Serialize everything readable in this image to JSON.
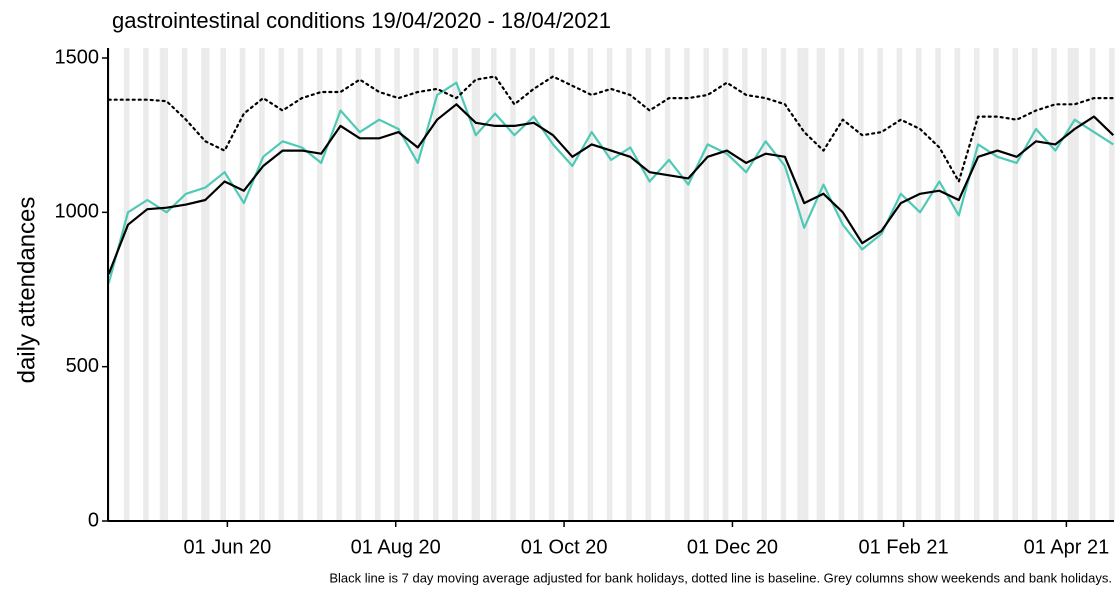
{
  "chart_data": {
    "type": "line",
    "title": "gastrointestinal conditions 19/04/2020 - 18/04/2021",
    "y_label": "daily attendances",
    "caption": "Black line is 7 day moving average adjusted for bank holidays, dotted line is baseline. Grey columns show weekends and bank holidays.",
    "x": [
      "2020-04-19",
      "2020-04-26",
      "2020-05-03",
      "2020-05-10",
      "2020-05-17",
      "2020-05-24",
      "2020-05-31",
      "2020-06-07",
      "2020-06-14",
      "2020-06-21",
      "2020-06-28",
      "2020-07-05",
      "2020-07-12",
      "2020-07-19",
      "2020-07-26",
      "2020-08-02",
      "2020-08-09",
      "2020-08-16",
      "2020-08-23",
      "2020-08-30",
      "2020-09-06",
      "2020-09-13",
      "2020-09-20",
      "2020-09-27",
      "2020-10-04",
      "2020-10-11",
      "2020-10-18",
      "2020-10-25",
      "2020-11-01",
      "2020-11-08",
      "2020-11-15",
      "2020-11-22",
      "2020-11-29",
      "2020-12-06",
      "2020-12-13",
      "2020-12-20",
      "2020-12-27",
      "2021-01-03",
      "2021-01-10",
      "2021-01-17",
      "2021-01-24",
      "2021-01-31",
      "2021-02-07",
      "2021-02-14",
      "2021-02-21",
      "2021-02-28",
      "2021-03-07",
      "2021-03-14",
      "2021-03-21",
      "2021-03-28",
      "2021-04-04",
      "2021-04-11",
      "2021-04-18"
    ],
    "series": [
      {
        "color": "#4fc9b5",
        "style": "solid",
        "width": 2.2,
        "values": [
          770,
          1000,
          1040,
          1000,
          1060,
          1080,
          1130,
          1030,
          1180,
          1230,
          1210,
          1160,
          1330,
          1260,
          1300,
          1270,
          1160,
          1380,
          1420,
          1250,
          1320,
          1250,
          1310,
          1220,
          1150,
          1260,
          1170,
          1210,
          1100,
          1170,
          1090,
          1220,
          1190,
          1130,
          1230,
          1150,
          950,
          1090,
          960,
          880,
          930,
          1060,
          1000,
          1100,
          990,
          1220,
          1180,
          1160,
          1270,
          1200,
          1300,
          1260,
          1220
        ]
      },
      {
        "color": "#000000",
        "style": "dotted",
        "width": 2.2,
        "values": [
          1365,
          1365,
          1365,
          1360,
          1300,
          1230,
          1200,
          1320,
          1370,
          1330,
          1370,
          1390,
          1390,
          1430,
          1390,
          1370,
          1390,
          1400,
          1370,
          1430,
          1440,
          1350,
          1400,
          1440,
          1410,
          1380,
          1400,
          1380,
          1330,
          1370,
          1370,
          1380,
          1420,
          1380,
          1370,
          1350,
          1260,
          1200,
          1300,
          1250,
          1260,
          1300,
          1270,
          1210,
          1100,
          1310,
          1310,
          1300,
          1330,
          1350,
          1350,
          1370,
          1370
        ]
      },
      {
        "color": "#000000",
        "style": "solid",
        "width": 2.2,
        "values": [
          800,
          960,
          1010,
          1015,
          1025,
          1040,
          1100,
          1070,
          1150,
          1200,
          1200,
          1190,
          1280,
          1240,
          1240,
          1260,
          1210,
          1300,
          1350,
          1290,
          1280,
          1280,
          1290,
          1250,
          1180,
          1220,
          1200,
          1180,
          1130,
          1120,
          1110,
          1180,
          1200,
          1160,
          1190,
          1180,
          1030,
          1060,
          1000,
          900,
          940,
          1030,
          1060,
          1070,
          1040,
          1180,
          1200,
          1180,
          1230,
          1220,
          1270,
          1310,
          1250
        ]
      }
    ],
    "bank_holidays": [
      "2020-05-08",
      "2020-05-25",
      "2020-08-31",
      "2020-12-25",
      "2020-12-28",
      "2021-01-01",
      "2021-04-02",
      "2021-04-05"
    ],
    "weekend_shading": true,
    "xlim": [
      "2020-04-19",
      "2021-04-18"
    ],
    "xticks": [
      {
        "value": "2020-06-01",
        "label": "01 Jun 20"
      },
      {
        "value": "2020-08-01",
        "label": "01 Aug 20"
      },
      {
        "value": "2020-10-01",
        "label": "01 Oct 20"
      },
      {
        "value": "2020-12-01",
        "label": "01 Dec 20"
      },
      {
        "value": "2021-02-01",
        "label": "01 Feb 21"
      },
      {
        "value": "2021-04-01",
        "label": "01 Apr 21"
      }
    ],
    "ylim": [
      0,
      1500
    ],
    "yticks": [
      0,
      500,
      1000,
      1500
    ],
    "grid": false
  }
}
